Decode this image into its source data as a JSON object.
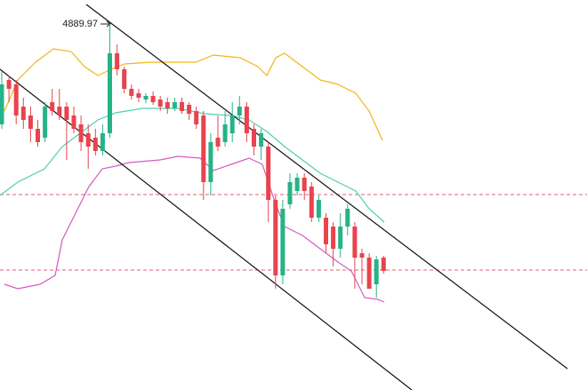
{
  "chart_data": {
    "type": "candlestick",
    "ylim": [
      4478,
      4917
    ],
    "up_color": "#26b387",
    "down_color": "#e8434e",
    "open": [
      4777,
      4827,
      4822,
      4797,
      4787,
      4772,
      4762,
      4802,
      4797,
      4797,
      4787,
      4777,
      4767,
      4762,
      4747,
      4767,
      4857,
      4839,
      4817,
      4812,
      4805,
      4809,
      4805,
      4802,
      4795,
      4802,
      4799,
      4792,
      4787,
      4712,
      4762,
      4757,
      4767,
      4787,
      4797,
      4772,
      4752,
      4752,
      4692,
      4607,
      4687,
      4702,
      4717,
      4707,
      4672,
      4672,
      4662,
      4637,
      4662,
      4662,
      4632,
      4627,
      4597,
      4627
    ],
    "high": [
      4837,
      4832,
      4827,
      4807,
      4797,
      4782,
      4802,
      4817,
      4817,
      4802,
      4797,
      4787,
      4777,
      4772,
      4777,
      4889.97,
      4867,
      4842,
      4822,
      4817,
      4812,
      4814,
      4809,
      4807,
      4807,
      4807,
      4802,
      4797,
      4792,
      4767,
      4787,
      4792,
      4802,
      4809,
      4802,
      4777,
      4772,
      4757,
      4697,
      4692,
      4722,
      4722,
      4722,
      4712,
      4697,
      4677,
      4667,
      4677,
      4687,
      4667,
      4637,
      4632,
      4629,
      4629
    ],
    "low": [
      4772,
      4802,
      4777,
      4772,
      4757,
      4752,
      4757,
      4787,
      4782,
      4737,
      4767,
      4747,
      4727,
      4742,
      4742,
      4762,
      4832,
      4812,
      4805,
      4802,
      4801,
      4799,
      4792,
      4789,
      4792,
      4789,
      4782,
      4772,
      4692,
      4697,
      4747,
      4752,
      4757,
      4777,
      4757,
      4742,
      4737,
      4667,
      4592,
      4597,
      4682,
      4697,
      4692,
      4667,
      4667,
      4632,
      4617,
      4627,
      4652,
      4592,
      4597,
      4592,
      4582,
      4609
    ],
    "close": [
      4822,
      4817,
      4787,
      4782,
      4772,
      4757,
      4797,
      4792,
      4787,
      4782,
      4772,
      4757,
      4752,
      4747,
      4767,
      4857,
      4839,
      4817,
      4809,
      4807,
      4809,
      4802,
      4797,
      4795,
      4802,
      4792,
      4789,
      4777,
      4712,
      4757,
      4752,
      4777,
      4787,
      4797,
      4767,
      4752,
      4767,
      4692,
      4607,
      4682,
      4712,
      4717,
      4702,
      4672,
      4692,
      4642,
      4637,
      4662,
      4682,
      4627,
      4627,
      4592,
      4625,
      4612
    ]
  }
}
